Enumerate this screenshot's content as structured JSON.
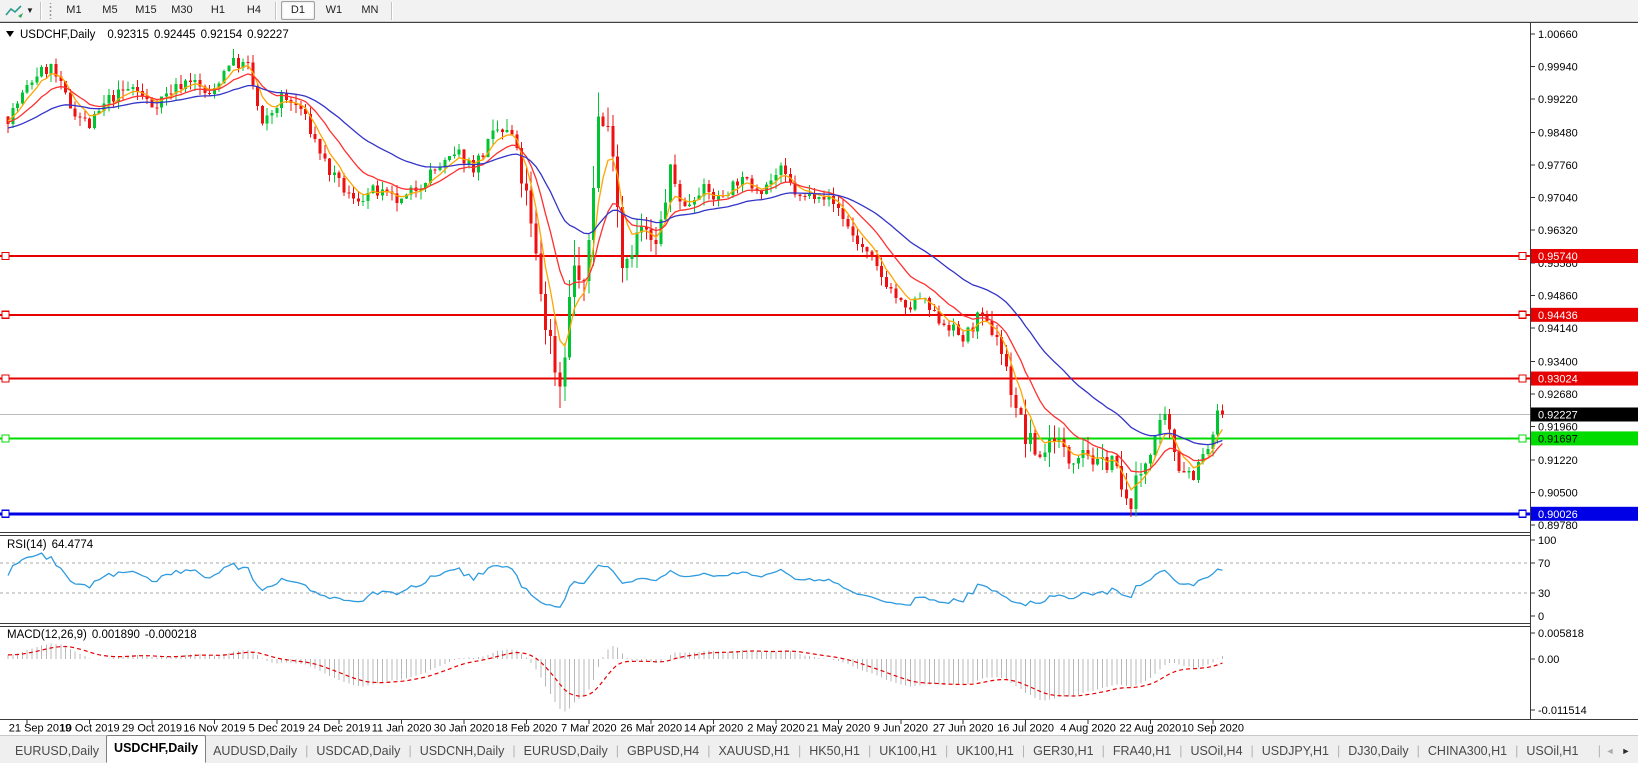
{
  "toolbar": {
    "timeframes": [
      "M1",
      "M5",
      "M15",
      "M30",
      "H1",
      "H4",
      "D1",
      "W1",
      "MN"
    ],
    "selected_timeframe": "D1"
  },
  "chart": {
    "title_symbol": "USDCHF,Daily",
    "ohlc": {
      "open": "0.92315",
      "high": "0.92445",
      "low": "0.92154",
      "close": "0.92227"
    },
    "price_axis_ticks": [
      "1.00660",
      "0.99940",
      "0.99220",
      "0.98480",
      "0.97760",
      "0.97040",
      "0.96320",
      "0.95580",
      "0.94860",
      "0.94140",
      "0.93400",
      "0.92680",
      "0.91960",
      "0.91220",
      "0.90500",
      "0.89780"
    ],
    "levels": [
      {
        "label": "0.95740",
        "value": 0.9574,
        "color": "#E60000",
        "text_color": "#FFFFFF",
        "width": 2
      },
      {
        "label": "0.94436",
        "value": 0.94436,
        "color": "#E60000",
        "text_color": "#FFFFFF",
        "width": 2
      },
      {
        "label": "0.93024",
        "value": 0.93024,
        "color": "#E60000",
        "text_color": "#FFFFFF",
        "width": 2
      },
      {
        "label": "0.91697",
        "value": 0.91697,
        "color": "#00DC00",
        "text_color": "#000000",
        "width": 2
      },
      {
        "label": "0.90026",
        "value": 0.90026,
        "color": "#0000E6",
        "text_color": "#FFFFFF",
        "width": 3
      }
    ],
    "current_price": {
      "label": "0.92227",
      "value": 0.92227,
      "line_color": "#BBBBBB",
      "bg": "#000000",
      "text_color": "#FFFFFF"
    }
  },
  "rsi": {
    "label": "RSI(14)",
    "value": "64.4774",
    "scale_ticks": [
      "100",
      "70",
      "30",
      "0"
    ],
    "scale_values": [
      100,
      70,
      30,
      0
    ],
    "guide_levels": [
      70,
      30
    ],
    "line_color": "#2E9BDF"
  },
  "macd": {
    "label": "MACD(12,26,9)",
    "main_value": "0.001890",
    "signal_value": "-0.000218",
    "scale_ticks": [
      "0.005818",
      "0.00",
      "-0.011514"
    ],
    "scale_values": [
      0.005818,
      0,
      -0.011514
    ],
    "histogram_color": "#B8B8B8",
    "signal_color": "#E60000"
  },
  "time_axis": {
    "dates": [
      "21 Sep 2019",
      "10 Oct 2019",
      "29 Oct 2019",
      "16 Nov 2019",
      "5 Dec 2019",
      "24 Dec 2019",
      "11 Jan 2020",
      "30 Jan 2020",
      "18 Feb 2020",
      "7 Mar 2020",
      "26 Mar 2020",
      "14 Apr 2020",
      "2 May 2020",
      "21 May 2020",
      "9 Jun 2020",
      "27 Jun 2020",
      "16 Jul 2020",
      "4 Aug 2020",
      "22 Aug 2020",
      "10 Sep 2020"
    ]
  },
  "tabs": {
    "active_index": 1,
    "items": [
      "EURUSD,Daily",
      "USDCHF,Daily",
      "AUDUSD,Daily",
      "USDCAD,Daily",
      "USDCNH,Daily",
      "EURUSD,Daily",
      "GBPUSD,H4",
      "XAUUSD,H1",
      "HK50,H1",
      "UK100,H1",
      "UK100,H1",
      "GER30,H1",
      "FRA40,H1",
      "USOil,H4",
      "USDJPY,H1",
      "DJ30,Daily",
      "CHINA300,H1",
      "USOil,H1"
    ]
  },
  "chart_data": {
    "type": "candlestick",
    "symbol": "USDCHF",
    "timeframe": "Daily",
    "visible_range": {
      "first_date": "21 Sep 2019",
      "last_date": "10 Sep 2020",
      "price_top": 1.0066,
      "price_bottom": 0.8978
    },
    "up_color": "#00C432",
    "down_color": "#EE1111",
    "ma_lines": [
      {
        "est_period": 5,
        "color": "#FFA500"
      },
      {
        "est_period": 13,
        "color": "#FF3030"
      },
      {
        "est_period": 34,
        "color": "#3434C8"
      }
    ],
    "last_candle": {
      "open": 0.92315,
      "high": 0.92445,
      "low": 0.92154,
      "close": 0.92227
    },
    "candle_count": 254,
    "close_anchors": [
      [
        0,
        0.988
      ],
      [
        3,
        0.993
      ],
      [
        6,
        0.9978
      ],
      [
        9,
        0.9992
      ],
      [
        13,
        0.9905
      ],
      [
        17,
        0.9862
      ],
      [
        21,
        0.9922
      ],
      [
        26,
        0.9948
      ],
      [
        30,
        0.9908
      ],
      [
        34,
        0.994
      ],
      [
        38,
        0.9968
      ],
      [
        42,
        0.9925
      ],
      [
        46,
        1.0005
      ],
      [
        50,
        0.9995
      ],
      [
        53,
        0.986
      ],
      [
        57,
        0.9925
      ],
      [
        61,
        0.99
      ],
      [
        67,
        0.976
      ],
      [
        72,
        0.9695
      ],
      [
        76,
        0.9718
      ],
      [
        82,
        0.9692
      ],
      [
        88,
        0.9758
      ],
      [
        94,
        0.98
      ],
      [
        97,
        0.9772
      ],
      [
        102,
        0.9852
      ],
      [
        105,
        0.984
      ],
      [
        108,
        0.97
      ],
      [
        112,
        0.943
      ],
      [
        115,
        0.929
      ],
      [
        118,
        0.956
      ],
      [
        120,
        0.948
      ],
      [
        123,
        0.988
      ],
      [
        126,
        0.983
      ],
      [
        128,
        0.956
      ],
      [
        132,
        0.9635
      ],
      [
        135,
        0.959
      ],
      [
        138,
        0.976
      ],
      [
        141,
        0.968
      ],
      [
        144,
        0.9725
      ],
      [
        148,
        0.97
      ],
      [
        152,
        0.9742
      ],
      [
        157,
        0.9725
      ],
      [
        161,
        0.9762
      ],
      [
        165,
        0.97
      ],
      [
        169,
        0.9718
      ],
      [
        173,
        0.968
      ],
      [
        176,
        0.962
      ],
      [
        180,
        0.956
      ],
      [
        184,
        0.95
      ],
      [
        187,
        0.945
      ],
      [
        190,
        0.9482
      ],
      [
        193,
        0.944
      ],
      [
        196,
        0.942
      ],
      [
        199,
        0.939
      ],
      [
        202,
        0.9435
      ],
      [
        206,
        0.94
      ],
      [
        209,
        0.928
      ],
      [
        212,
        0.917
      ],
      [
        215,
        0.913
      ],
      [
        218,
        0.918
      ],
      [
        221,
        0.912
      ],
      [
        224,
        0.9155
      ],
      [
        227,
        0.9105
      ],
      [
        230,
        0.913
      ],
      [
        233,
        0.9015
      ],
      [
        236,
        0.909
      ],
      [
        239,
        0.9175
      ],
      [
        241,
        0.921
      ],
      [
        244,
        0.911
      ],
      [
        247,
        0.909
      ],
      [
        249,
        0.913
      ],
      [
        251,
        0.9165
      ],
      [
        252,
        0.9232
      ],
      [
        253,
        0.92227
      ]
    ],
    "volatility_anchors": [
      [
        0,
        1
      ],
      [
        95,
        1
      ],
      [
        105,
        1.5
      ],
      [
        110,
        2.6
      ],
      [
        116,
        3
      ],
      [
        124,
        2.8
      ],
      [
        130,
        2
      ],
      [
        140,
        1.3
      ],
      [
        150,
        1
      ],
      [
        200,
        1
      ],
      [
        207,
        1.5
      ],
      [
        213,
        1.9
      ],
      [
        220,
        1.4
      ],
      [
        228,
        1.5
      ],
      [
        233,
        2
      ],
      [
        240,
        1.3
      ],
      [
        250,
        1.1
      ],
      [
        253,
        1.2
      ]
    ]
  }
}
